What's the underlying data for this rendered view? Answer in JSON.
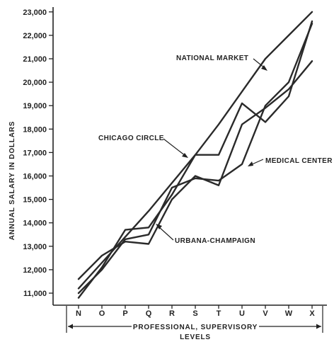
{
  "chart_data": {
    "type": "line",
    "xlabel": "LEVELS",
    "x_group_label": "PROFESSIONAL, SUPERVISORY",
    "ylabel": "ANNUAL SALARY IN DOLLARS",
    "categories": [
      "N",
      "O",
      "P",
      "Q",
      "R",
      "S",
      "T",
      "U",
      "V",
      "W",
      "X"
    ],
    "y_ticks": [
      "11,000",
      "12,000",
      "13,000",
      "14,000",
      "15,000",
      "16,000",
      "17,000",
      "18,000",
      "19,000",
      "20,000",
      "21,000",
      "22,000",
      "23,000"
    ],
    "ylim": [
      10500,
      23200
    ],
    "grid": false,
    "series": [
      {
        "name": "NATIONAL MARKET",
        "values": [
          11200,
          12300,
          13400,
          14500,
          15700,
          16900,
          18200,
          19600,
          21000,
          22000,
          23000
        ]
      },
      {
        "name": "CHICAGO CIRCLE",
        "values": [
          10800,
          12100,
          13700,
          13800,
          15200,
          16900,
          16900,
          19100,
          18300,
          19400,
          22600
        ]
      },
      {
        "name": "MEDICAL CENTER",
        "values": [
          11000,
          12000,
          13300,
          13500,
          15500,
          15900,
          15800,
          16500,
          19000,
          20000,
          22500
        ]
      },
      {
        "name": "URBANA-CHAMPAIGN",
        "values": [
          11600,
          12600,
          13200,
          13100,
          15000,
          16000,
          15600,
          18200,
          18900,
          19700,
          20900
        ]
      }
    ],
    "annotations": [
      "NATIONAL MARKET",
      "CHICAGO CIRCLE",
      "MEDICAL CENTER",
      "URBANA-CHAMPAIGN"
    ]
  }
}
